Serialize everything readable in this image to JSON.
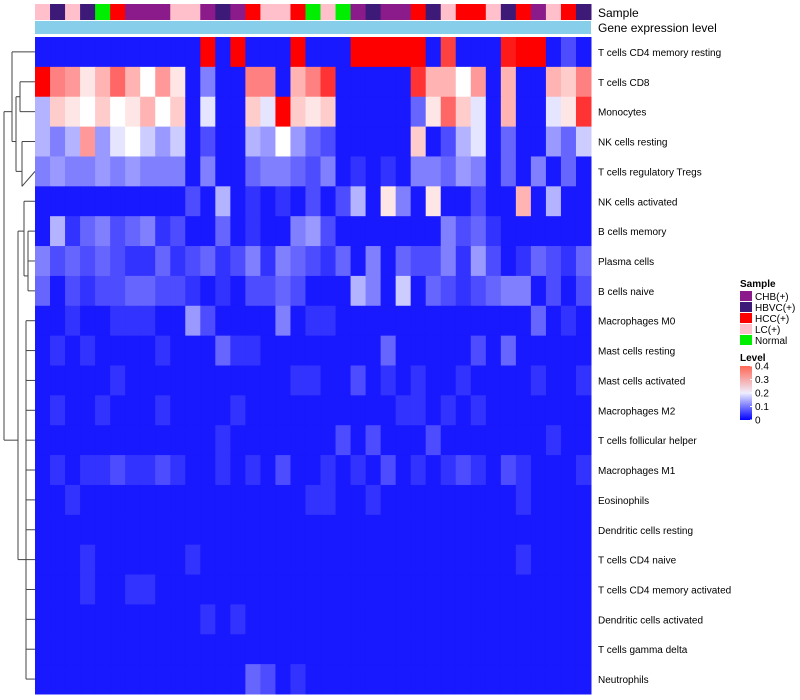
{
  "chart_data": {
    "type": "heatmap",
    "title": "",
    "annotation_tracks": [
      "Sample",
      "Gene expression level"
    ],
    "samples": [
      "LC(+)",
      "HBVC(+)",
      "LC(+)",
      "HBVC(+)",
      "Normal",
      "HCC(+)",
      "CHB(+)",
      "CHB(+)",
      "CHB(+)",
      "LC(+)",
      "LC(+)",
      "CHB(+)",
      "HBVC(+)",
      "CHB(+)",
      "HCC(+)",
      "LC(+)",
      "LC(+)",
      "HCC(+)",
      "Normal",
      "LC(+)",
      "Normal",
      "CHB(+)",
      "HBVC(+)",
      "CHB(+)",
      "CHB(+)",
      "HCC(+)",
      "HBVC(+)",
      "LC(+)",
      "HCC(+)",
      "HCC(+)",
      "LC(+)",
      "HBVC(+)",
      "HCC(+)",
      "CHB(+)",
      "LC(+)",
      "HCC(+)",
      "HBVC(+)"
    ],
    "rows": [
      "T cells CD4 memory resting",
      "T cells CD8",
      "Monocytes",
      "NK cells resting",
      "T cells regulatory  Tregs",
      "NK cells activated",
      "B cells memory",
      "Plasma cells",
      "B cells naive",
      "Macrophages M0",
      "Mast cells resting",
      "Mast cells activated",
      "Macrophages M2",
      "T cells follicular helper",
      "Macrophages M1",
      "Eosinophils",
      "Dendritic cells resting",
      "T cells CD4 naive",
      "T cells CD4 memory activated",
      "Dendritic cells activated",
      "T cells gamma delta",
      "Neutrophils"
    ],
    "values": [
      [
        0.02,
        0.02,
        0.02,
        0.02,
        0.02,
        0.02,
        0.02,
        0.02,
        0.02,
        0.02,
        0.02,
        0.4,
        0.02,
        0.4,
        0.02,
        0.02,
        0.02,
        0.4,
        0.02,
        0.02,
        0.02,
        0.4,
        0.4,
        0.4,
        0.4,
        0.4,
        0.02,
        0.35,
        0.02,
        0.02,
        0.02,
        0.38,
        0.4,
        0.4,
        0.02,
        0.06,
        0.02
      ],
      [
        0.4,
        0.3,
        0.28,
        0.22,
        0.26,
        0.32,
        0.26,
        0.2,
        0.28,
        0.22,
        0.02,
        0.1,
        0.02,
        0.02,
        0.3,
        0.3,
        0.02,
        0.26,
        0.3,
        0.36,
        0.02,
        0.02,
        0.02,
        0.02,
        0.02,
        0.36,
        0.26,
        0.26,
        0.2,
        0.28,
        0.02,
        0.26,
        0.02,
        0.02,
        0.26,
        0.24,
        0.3
      ],
      [
        0.14,
        0.24,
        0.22,
        0.2,
        0.24,
        0.2,
        0.22,
        0.26,
        0.2,
        0.24,
        0.02,
        0.18,
        0.02,
        0.02,
        0.24,
        0.18,
        0.4,
        0.24,
        0.22,
        0.24,
        0.02,
        0.02,
        0.02,
        0.02,
        0.02,
        0.08,
        0.22,
        0.32,
        0.24,
        0.18,
        0.02,
        0.26,
        0.02,
        0.02,
        0.18,
        0.22,
        0.36
      ],
      [
        0.14,
        0.1,
        0.14,
        0.28,
        0.12,
        0.18,
        0.2,
        0.16,
        0.12,
        0.16,
        0.02,
        0.06,
        0.02,
        0.02,
        0.14,
        0.12,
        0.2,
        0.12,
        0.08,
        0.06,
        0.02,
        0.02,
        0.02,
        0.02,
        0.02,
        0.24,
        0.02,
        0.06,
        0.14,
        0.18,
        0.02,
        0.08,
        0.02,
        0.02,
        0.12,
        0.08,
        0.16
      ],
      [
        0.1,
        0.12,
        0.1,
        0.1,
        0.12,
        0.1,
        0.12,
        0.1,
        0.1,
        0.1,
        0.02,
        0.1,
        0.02,
        0.02,
        0.08,
        0.1,
        0.1,
        0.08,
        0.06,
        0.1,
        0.02,
        0.04,
        0.02,
        0.04,
        0.02,
        0.1,
        0.1,
        0.08,
        0.12,
        0.1,
        0.02,
        0.08,
        0.02,
        0.1,
        0.02,
        0.08,
        0.02
      ],
      [
        0.02,
        0.02,
        0.02,
        0.02,
        0.02,
        0.02,
        0.02,
        0.02,
        0.02,
        0.02,
        0.06,
        0.02,
        0.14,
        0.02,
        0.04,
        0.02,
        0.04,
        0.02,
        0.06,
        0.02,
        0.06,
        0.14,
        0.02,
        0.22,
        0.1,
        0.02,
        0.22,
        0.02,
        0.02,
        0.06,
        0.02,
        0.02,
        0.26,
        0.02,
        0.14,
        0.02,
        0.02
      ],
      [
        0.02,
        0.14,
        0.04,
        0.08,
        0.1,
        0.06,
        0.08,
        0.1,
        0.04,
        0.06,
        0.02,
        0.02,
        0.08,
        0.02,
        0.04,
        0.02,
        0.02,
        0.1,
        0.12,
        0.06,
        0.02,
        0.02,
        0.02,
        0.02,
        0.02,
        0.02,
        0.02,
        0.1,
        0.06,
        0.08,
        0.04,
        0.02,
        0.02,
        0.02,
        0.02,
        0.02,
        0.02
      ],
      [
        0.1,
        0.06,
        0.08,
        0.06,
        0.08,
        0.06,
        0.04,
        0.04,
        0.08,
        0.04,
        0.06,
        0.08,
        0.04,
        0.06,
        0.1,
        0.04,
        0.1,
        0.08,
        0.06,
        0.04,
        0.08,
        0.02,
        0.1,
        0.02,
        0.08,
        0.06,
        0.06,
        0.1,
        0.04,
        0.12,
        0.06,
        0.02,
        0.04,
        0.08,
        0.06,
        0.04,
        0.08
      ],
      [
        0.08,
        0.02,
        0.06,
        0.04,
        0.06,
        0.06,
        0.08,
        0.08,
        0.06,
        0.06,
        0.04,
        0.02,
        0.04,
        0.02,
        0.06,
        0.06,
        0.08,
        0.06,
        0.02,
        0.02,
        0.02,
        0.14,
        0.1,
        0.02,
        0.16,
        0.02,
        0.08,
        0.06,
        0.04,
        0.06,
        0.08,
        0.1,
        0.1,
        0.02,
        0.06,
        0.02,
        0.06
      ],
      [
        0.02,
        0.02,
        0.04,
        0.02,
        0.02,
        0.04,
        0.04,
        0.04,
        0.02,
        0.02,
        0.12,
        0.06,
        0.02,
        0.02,
        0.02,
        0.02,
        0.1,
        0.02,
        0.04,
        0.04,
        0.02,
        0.02,
        0.02,
        0.02,
        0.02,
        0.02,
        0.02,
        0.02,
        0.02,
        0.02,
        0.02,
        0.02,
        0.02,
        0.08,
        0.02,
        0.04,
        0.02
      ],
      [
        0.02,
        0.04,
        0.02,
        0.04,
        0.02,
        0.02,
        0.02,
        0.02,
        0.04,
        0.02,
        0.02,
        0.02,
        0.08,
        0.04,
        0.04,
        0.02,
        0.02,
        0.02,
        0.02,
        0.02,
        0.02,
        0.02,
        0.02,
        0.08,
        0.02,
        0.02,
        0.02,
        0.02,
        0.02,
        0.06,
        0.02,
        0.08,
        0.02,
        0.02,
        0.02,
        0.02,
        0.02
      ],
      [
        0.02,
        0.02,
        0.02,
        0.02,
        0.02,
        0.04,
        0.02,
        0.02,
        0.02,
        0.02,
        0.02,
        0.02,
        0.02,
        0.02,
        0.02,
        0.02,
        0.02,
        0.04,
        0.04,
        0.02,
        0.02,
        0.06,
        0.02,
        0.04,
        0.02,
        0.04,
        0.02,
        0.02,
        0.04,
        0.02,
        0.02,
        0.02,
        0.02,
        0.04,
        0.02,
        0.02,
        0.04
      ],
      [
        0.02,
        0.04,
        0.02,
        0.02,
        0.04,
        0.02,
        0.02,
        0.02,
        0.04,
        0.02,
        0.02,
        0.02,
        0.02,
        0.04,
        0.02,
        0.02,
        0.02,
        0.02,
        0.02,
        0.02,
        0.02,
        0.02,
        0.02,
        0.02,
        0.04,
        0.04,
        0.02,
        0.04,
        0.02,
        0.04,
        0.02,
        0.02,
        0.02,
        0.02,
        0.02,
        0.02,
        0.02
      ],
      [
        0.02,
        0.02,
        0.02,
        0.02,
        0.02,
        0.02,
        0.02,
        0.02,
        0.02,
        0.02,
        0.02,
        0.02,
        0.04,
        0.02,
        0.02,
        0.02,
        0.02,
        0.02,
        0.02,
        0.02,
        0.06,
        0.02,
        0.06,
        0.02,
        0.02,
        0.02,
        0.06,
        0.02,
        0.02,
        0.02,
        0.02,
        0.02,
        0.02,
        0.02,
        0.04,
        0.02,
        0.02
      ],
      [
        0.02,
        0.04,
        0.02,
        0.04,
        0.04,
        0.06,
        0.04,
        0.04,
        0.06,
        0.04,
        0.02,
        0.02,
        0.04,
        0.02,
        0.04,
        0.02,
        0.06,
        0.02,
        0.02,
        0.04,
        0.02,
        0.04,
        0.02,
        0.06,
        0.02,
        0.04,
        0.02,
        0.04,
        0.06,
        0.04,
        0.02,
        0.06,
        0.04,
        0.02,
        0.02,
        0.02,
        0.04
      ],
      [
        0.02,
        0.02,
        0.04,
        0.02,
        0.02,
        0.02,
        0.02,
        0.02,
        0.02,
        0.02,
        0.02,
        0.02,
        0.02,
        0.02,
        0.02,
        0.02,
        0.02,
        0.02,
        0.04,
        0.04,
        0.02,
        0.02,
        0.04,
        0.02,
        0.02,
        0.02,
        0.02,
        0.02,
        0.02,
        0.02,
        0.02,
        0.02,
        0.04,
        0.02,
        0.02,
        0.02,
        0.02
      ],
      [
        0.02,
        0.02,
        0.02,
        0.02,
        0.02,
        0.02,
        0.02,
        0.02,
        0.02,
        0.02,
        0.02,
        0.02,
        0.02,
        0.02,
        0.02,
        0.02,
        0.02,
        0.02,
        0.02,
        0.02,
        0.02,
        0.02,
        0.02,
        0.02,
        0.02,
        0.02,
        0.02,
        0.02,
        0.02,
        0.02,
        0.02,
        0.02,
        0.02,
        0.02,
        0.02,
        0.02,
        0.02
      ],
      [
        0.02,
        0.02,
        0.02,
        0.04,
        0.02,
        0.02,
        0.02,
        0.02,
        0.02,
        0.02,
        0.04,
        0.02,
        0.02,
        0.02,
        0.02,
        0.02,
        0.02,
        0.02,
        0.02,
        0.02,
        0.02,
        0.02,
        0.02,
        0.02,
        0.02,
        0.02,
        0.02,
        0.02,
        0.02,
        0.02,
        0.02,
        0.02,
        0.04,
        0.02,
        0.02,
        0.02,
        0.02
      ],
      [
        0.02,
        0.02,
        0.02,
        0.04,
        0.02,
        0.02,
        0.04,
        0.04,
        0.02,
        0.02,
        0.02,
        0.02,
        0.02,
        0.02,
        0.02,
        0.02,
        0.02,
        0.02,
        0.02,
        0.02,
        0.02,
        0.02,
        0.02,
        0.02,
        0.02,
        0.02,
        0.02,
        0.02,
        0.02,
        0.02,
        0.02,
        0.02,
        0.02,
        0.02,
        0.02,
        0.02,
        0.02
      ],
      [
        0.02,
        0.02,
        0.02,
        0.02,
        0.02,
        0.02,
        0.02,
        0.02,
        0.02,
        0.02,
        0.02,
        0.04,
        0.02,
        0.04,
        0.02,
        0.02,
        0.02,
        0.02,
        0.02,
        0.02,
        0.02,
        0.02,
        0.02,
        0.02,
        0.02,
        0.02,
        0.02,
        0.02,
        0.02,
        0.02,
        0.02,
        0.02,
        0.02,
        0.02,
        0.02,
        0.02,
        0.02
      ],
      [
        0.02,
        0.02,
        0.02,
        0.02,
        0.02,
        0.02,
        0.02,
        0.02,
        0.02,
        0.02,
        0.02,
        0.02,
        0.02,
        0.02,
        0.02,
        0.02,
        0.02,
        0.02,
        0.02,
        0.02,
        0.02,
        0.02,
        0.02,
        0.02,
        0.02,
        0.02,
        0.02,
        0.02,
        0.02,
        0.02,
        0.02,
        0.02,
        0.02,
        0.02,
        0.02,
        0.02,
        0.02
      ],
      [
        0.02,
        0.02,
        0.02,
        0.02,
        0.02,
        0.02,
        0.02,
        0.02,
        0.02,
        0.02,
        0.02,
        0.02,
        0.02,
        0.02,
        0.08,
        0.06,
        0.02,
        0.04,
        0.02,
        0.02,
        0.02,
        0.02,
        0.02,
        0.02,
        0.02,
        0.02,
        0.02,
        0.02,
        0.02,
        0.02,
        0.02,
        0.02,
        0.02,
        0.02,
        0.02,
        0.02,
        0.02
      ]
    ],
    "legend_sample": {
      "title": "Sample",
      "entries": [
        {
          "label": "CHB(+)",
          "color": "#8b1a8b"
        },
        {
          "label": "HBVC(+)",
          "color": "#3d1a78"
        },
        {
          "label": "HCC(+)",
          "color": "#ff0000"
        },
        {
          "label": "LC(+)",
          "color": "#ffc0cb"
        },
        {
          "label": "Normal",
          "color": "#00ee00"
        }
      ]
    },
    "legend_level": {
      "title": "Level",
      "ticks": [
        "0.4",
        "0.3",
        "0.2",
        "0.1",
        "0"
      ],
      "tick_values": [
        0.4,
        0.3,
        0.2,
        0.1,
        0
      ]
    },
    "color_scale": {
      "domain": [
        0,
        0.2,
        0.4
      ],
      "colors": [
        "#0000ff",
        "#ffffff",
        "#ff0000"
      ]
    },
    "expression_level_color": "#87ceeb"
  }
}
